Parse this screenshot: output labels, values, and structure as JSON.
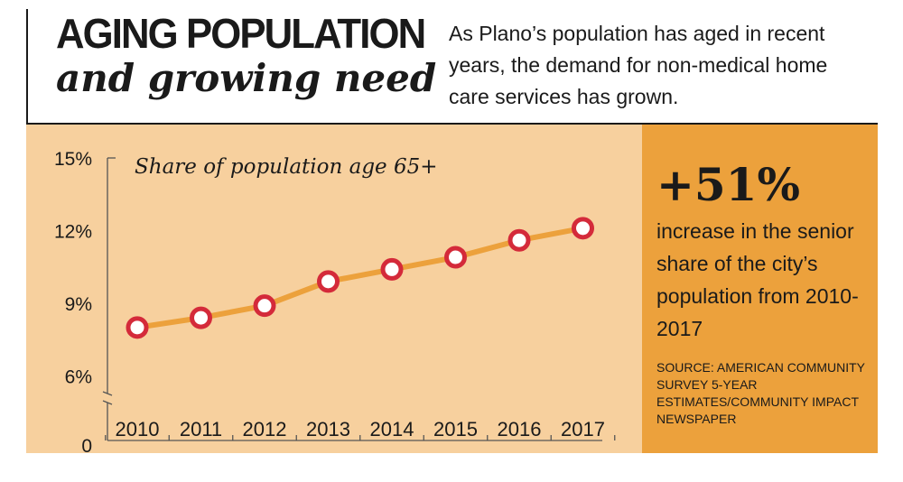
{
  "header": {
    "title": "AGING POPULATION",
    "subtitle": "and growing need",
    "intro": "As Plano’s population has aged in recent years, the demand for non-medical home care services has grown."
  },
  "colors": {
    "panel_bg": "#f7d09e",
    "side_bg": "#eca13c",
    "line": "#eca13c",
    "marker_stroke": "#d42a3a",
    "marker_fill": "#ffffff"
  },
  "chart_data": {
    "type": "line",
    "title": "Share of population age 65+",
    "xlabel": "",
    "ylabel": "",
    "categories": [
      "2010",
      "2011",
      "2012",
      "2013",
      "2014",
      "2015",
      "2016",
      "2017"
    ],
    "series": [
      {
        "values": [
          8.0,
          8.4,
          8.9,
          9.9,
          10.4,
          10.9,
          11.6,
          12.1
        ]
      }
    ],
    "yticks": [
      0,
      6,
      9,
      12,
      15
    ],
    "ytick_labels": [
      "0",
      "6%",
      "9%",
      "12%",
      "15%"
    ],
    "ylim": [
      0,
      15
    ],
    "axis_break": true,
    "grid": false,
    "legend": "none"
  },
  "callout": {
    "value": "+51%",
    "text": "increase in the senior share of the city’s population from 2010-2017",
    "source": "SOURCE: AMERICAN COMMUNITY SURVEY 5-YEAR ESTIMATES/COMMUNITY IMPACT NEWSPAPER"
  }
}
